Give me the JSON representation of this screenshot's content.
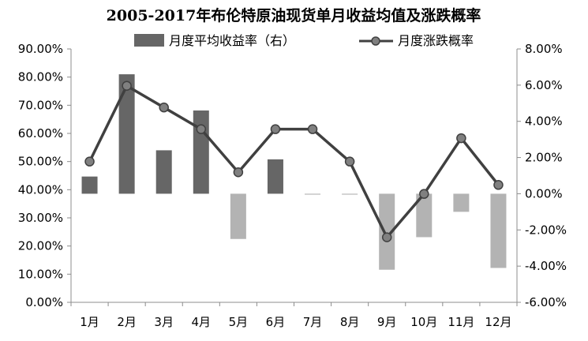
{
  "chart_data": {
    "type": "bar+line",
    "title": "2005-2017年布伦特原油现货单月收益均值及涨跌概率",
    "categories": [
      "1月",
      "2月",
      "3月",
      "4月",
      "5月",
      "6月",
      "7月",
      "8月",
      "9月",
      "10月",
      "11月",
      "12月"
    ],
    "series": [
      {
        "name": "月度平均收益率（右）",
        "type": "bar",
        "axis": "right",
        "positive_color": "#666666",
        "negative_color": "#b3b3b3",
        "values": [
          0.95,
          6.6,
          2.4,
          4.6,
          -2.5,
          1.9,
          -0.05,
          -0.05,
          -4.2,
          -2.4,
          -1.0,
          -4.1
        ]
      },
      {
        "name": "月度涨跌概率",
        "type": "line",
        "axis": "left",
        "color": "#404040",
        "values": [
          50.0,
          76.9,
          69.2,
          61.5,
          46.2,
          61.5,
          61.5,
          50.0,
          23.1,
          38.5,
          58.3,
          41.7
        ]
      }
    ],
    "left_axis": {
      "min": 0,
      "max": 90,
      "step": 10,
      "tick_labels": [
        "0.00%",
        "10.00%",
        "20.00%",
        "30.00%",
        "40.00%",
        "50.00%",
        "60.00%",
        "70.00%",
        "80.00%",
        "90.00%"
      ]
    },
    "right_axis": {
      "min": -6,
      "max": 8,
      "step": 2,
      "tick_labels": [
        "-6.00%",
        "-4.00%",
        "-2.00%",
        "0.00%",
        "2.00%",
        "4.00%",
        "6.00%",
        "8.00%"
      ]
    },
    "grid": false,
    "legend": "top"
  }
}
